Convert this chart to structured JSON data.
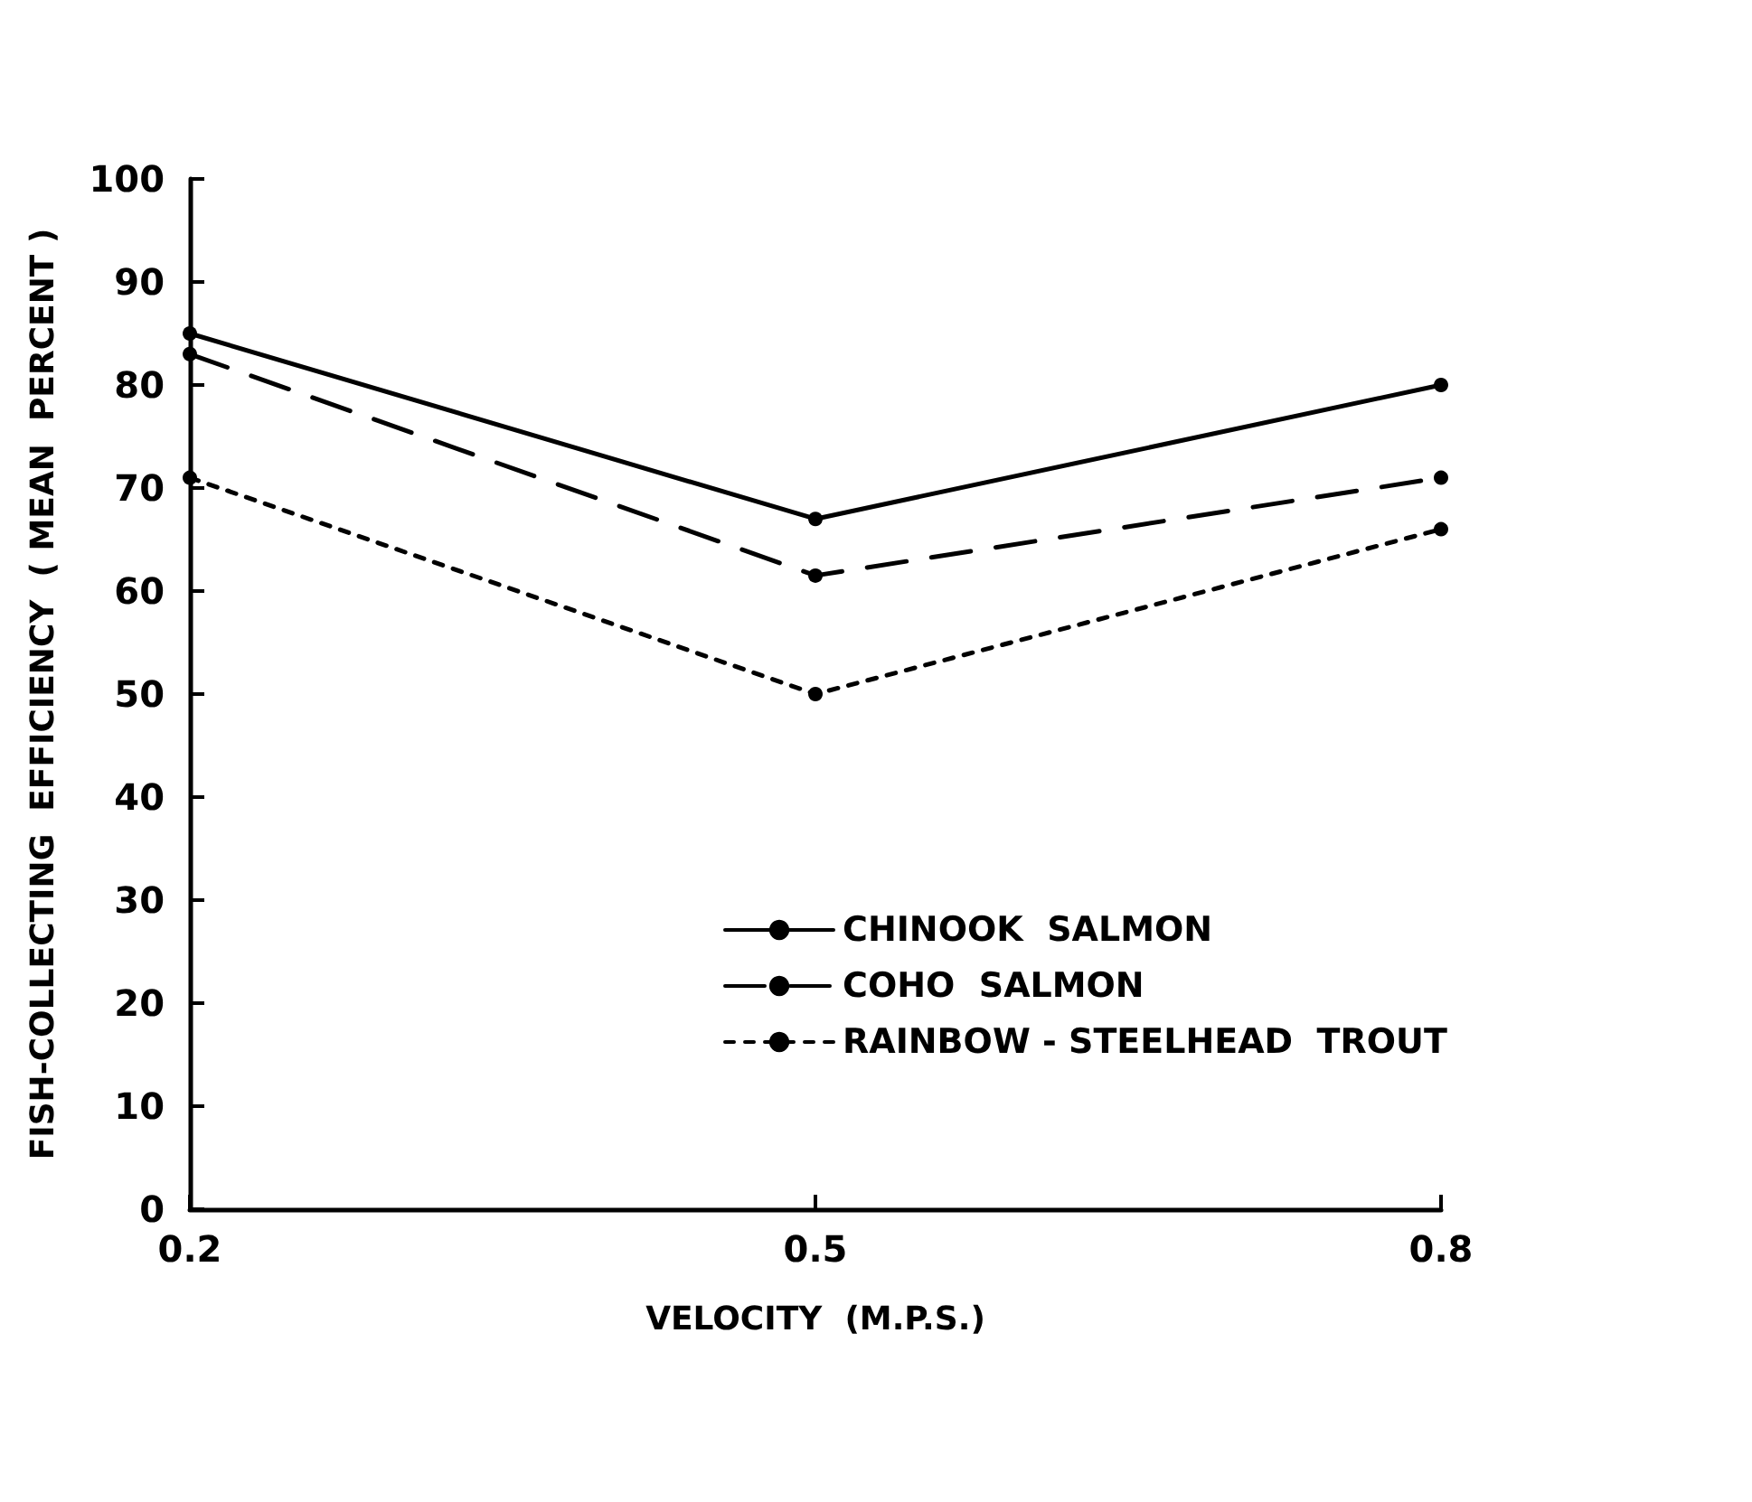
{
  "chart_data": {
    "type": "line",
    "xlabel": "VELOCITY  (M.P.S.)",
    "ylabel": "FISH-COLLECTING  EFFICIENCY  ( MEAN  PERCENT )",
    "x": [
      0.2,
      0.5,
      0.8
    ],
    "series": [
      {
        "name": "CHINOOK  SALMON",
        "color": "#000000",
        "line_style": "solid",
        "values": [
          85,
          67,
          80
        ]
      },
      {
        "name": "COHO  SALMON",
        "color": "#000000",
        "line_style": "dashed",
        "values": [
          83,
          61.5,
          71
        ]
      },
      {
        "name": "RAINBOW - STEELHEAD  TROUT",
        "color": "#000000",
        "line_style": "dotted",
        "values": [
          71,
          50,
          66
        ]
      }
    ],
    "xlim": [
      0.2,
      0.8
    ],
    "xticks": [
      0.2,
      0.5,
      0.8
    ],
    "ylim": [
      0,
      100
    ],
    "yticks": [
      0,
      10,
      20,
      30,
      40,
      50,
      60,
      70,
      80,
      90,
      100
    ],
    "grid": false,
    "legend": "right",
    "marker": "circle"
  }
}
